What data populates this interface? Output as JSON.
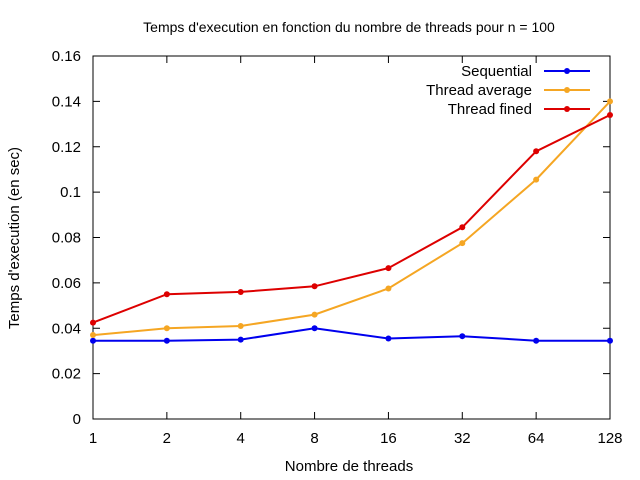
{
  "chart_data": {
    "type": "line",
    "title": "Temps d'execution en fonction du nombre de threads pour n = 100",
    "xlabel": "Nombre de threads",
    "ylabel": "Temps d'execution (en sec)",
    "x_scale": "log2",
    "categories": [
      "1",
      "2",
      "4",
      "8",
      "16",
      "32",
      "64",
      "128"
    ],
    "x": [
      1,
      2,
      4,
      8,
      16,
      32,
      64,
      128
    ],
    "yticks": [
      "0",
      "0.02",
      "0.04",
      "0.06",
      "0.08",
      "0.1",
      "0.12",
      "0.14",
      "0.16"
    ],
    "ylim": [
      0,
      0.16
    ],
    "grid": false,
    "legend_position": "top-right",
    "series": [
      {
        "name": "Sequential",
        "color": "#0000ee",
        "values": [
          0.0345,
          0.0345,
          0.035,
          0.04,
          0.0355,
          0.0365,
          0.0345,
          0.0345
        ]
      },
      {
        "name": "Thread average",
        "color": "#f5a623",
        "values": [
          0.037,
          0.04,
          0.041,
          0.046,
          0.0575,
          0.0775,
          0.1055,
          0.14
        ]
      },
      {
        "name": "Thread fined",
        "color": "#dd0000",
        "values": [
          0.0425,
          0.055,
          0.056,
          0.0585,
          0.0665,
          0.0845,
          0.118,
          0.134
        ]
      }
    ]
  }
}
